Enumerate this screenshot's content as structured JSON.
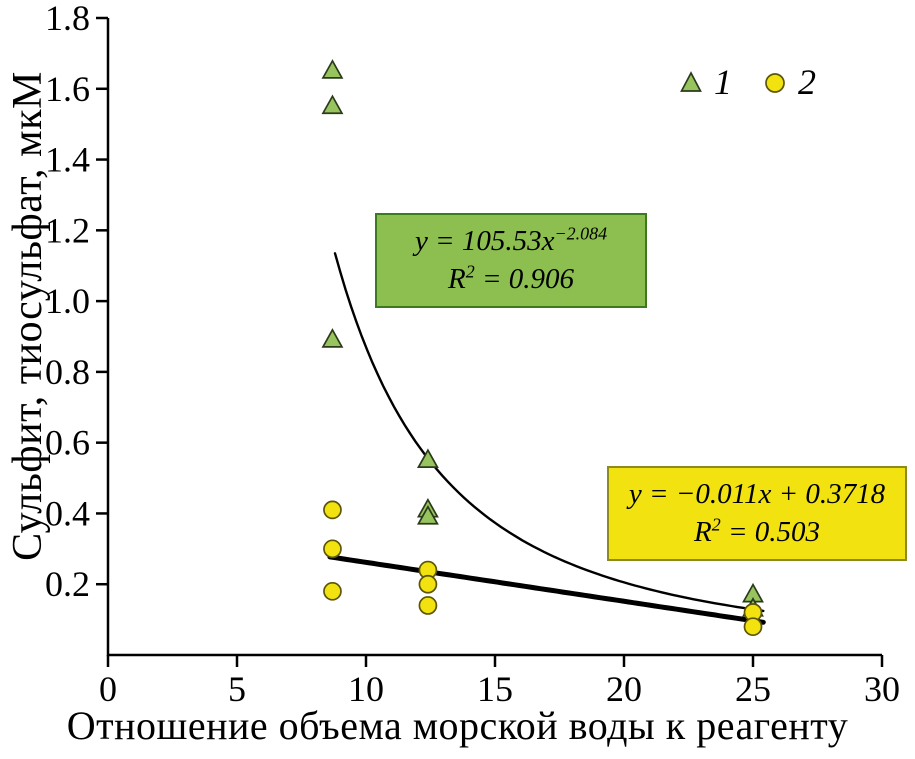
{
  "chart_data": {
    "type": "scatter",
    "title": "",
    "xlabel": "Отношение объема морской воды к реагенту",
    "ylabel": "Сульфит, тиосульфат, мкМ",
    "xlim": [
      0,
      30
    ],
    "ylim": [
      0,
      1.8
    ],
    "xticks": [
      0,
      5,
      10,
      15,
      20,
      25,
      30
    ],
    "xtick_labels": [
      "0",
      "5",
      "10",
      "15",
      "20",
      "25",
      "30"
    ],
    "yticks": [
      0.2,
      0.4,
      0.6,
      0.8,
      1.0,
      1.2,
      1.4,
      1.6,
      1.8
    ],
    "ytick_labels": [
      "0.2",
      "0.4",
      "0.6",
      "0.8",
      "1.0",
      "1.2",
      "1.4",
      "1.6",
      "1.8"
    ],
    "grid": false,
    "axis_color": "#000000",
    "legend": {
      "position": "top-right",
      "entries": [
        {
          "label": "1",
          "marker": "triangle"
        },
        {
          "label": "2",
          "marker": "circle"
        }
      ]
    },
    "series": [
      {
        "name": "1",
        "marker": "triangle",
        "fill": "#97c45e",
        "edge": "#2b3a1a",
        "points": [
          [
            8.7,
            1.65
          ],
          [
            8.7,
            1.55
          ],
          [
            8.7,
            0.89
          ],
          [
            12.4,
            0.55
          ],
          [
            12.4,
            0.41
          ],
          [
            12.4,
            0.39
          ],
          [
            25,
            0.17
          ],
          [
            25,
            0.13
          ]
        ]
      },
      {
        "name": "2",
        "marker": "circle",
        "fill": "#f2e20f",
        "edge": "#5c5505",
        "points": [
          [
            8.7,
            0.41
          ],
          [
            8.7,
            0.3
          ],
          [
            8.7,
            0.18
          ],
          [
            12.4,
            0.24
          ],
          [
            12.4,
            0.2
          ],
          [
            12.4,
            0.14
          ],
          [
            25,
            0.12
          ],
          [
            25,
            0.08
          ]
        ]
      }
    ],
    "fits": [
      {
        "id": "power-fit",
        "kind": "power",
        "a": 105.53,
        "b": -2.084,
        "x_from": 8.8,
        "x_to": 25.4,
        "stroke_width": 2.4
      },
      {
        "id": "linear-fit",
        "kind": "linear",
        "m": -0.011,
        "c": 0.3718,
        "x_from": 8.6,
        "x_to": 25.4,
        "stroke_width": 5
      }
    ],
    "annotations": [
      {
        "id": "power-fit",
        "line1": {
          "base": "y = 105.53x",
          "sup": "−2.084",
          "rest": ""
        },
        "line2": {
          "base": "R",
          "sup": "2",
          "rest": " = 0.906"
        },
        "fill": "#8cbf4f",
        "border": "#3d7a1e"
      },
      {
        "id": "linear-fit",
        "line1": {
          "base": "y = −0.011x + 0.3718",
          "sup": "",
          "rest": ""
        },
        "line2": {
          "base": "R",
          "sup": "2",
          "rest": " = 0.503"
        },
        "fill": "#f2e20f",
        "border": "#8c8c1e"
      }
    ]
  }
}
